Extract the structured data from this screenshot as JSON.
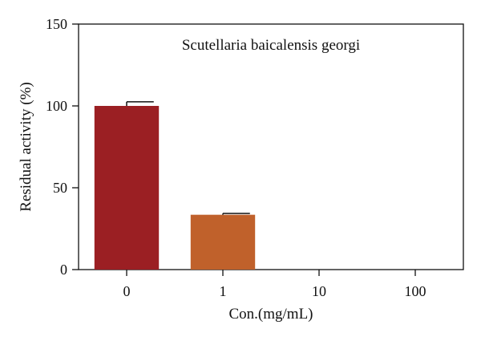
{
  "chart_data": {
    "type": "bar",
    "annotation": "Scutellaria baicalensis georgi",
    "xlabel": "Con.(mg/mL)",
    "ylabel": "Residual activity (%)",
    "categories": [
      "0",
      "1",
      "10",
      "100"
    ],
    "values": [
      100,
      33.5,
      0,
      0
    ],
    "errors": [
      2.5,
      0.8,
      0,
      0
    ],
    "ylim": [
      0,
      150
    ],
    "yticks": [
      "0",
      "50",
      "100",
      "150"
    ],
    "grid": false,
    "legend": "none",
    "colors": [
      "#9b1f23",
      "#c0612b",
      "#9b1f23",
      "#9b1f23"
    ]
  }
}
